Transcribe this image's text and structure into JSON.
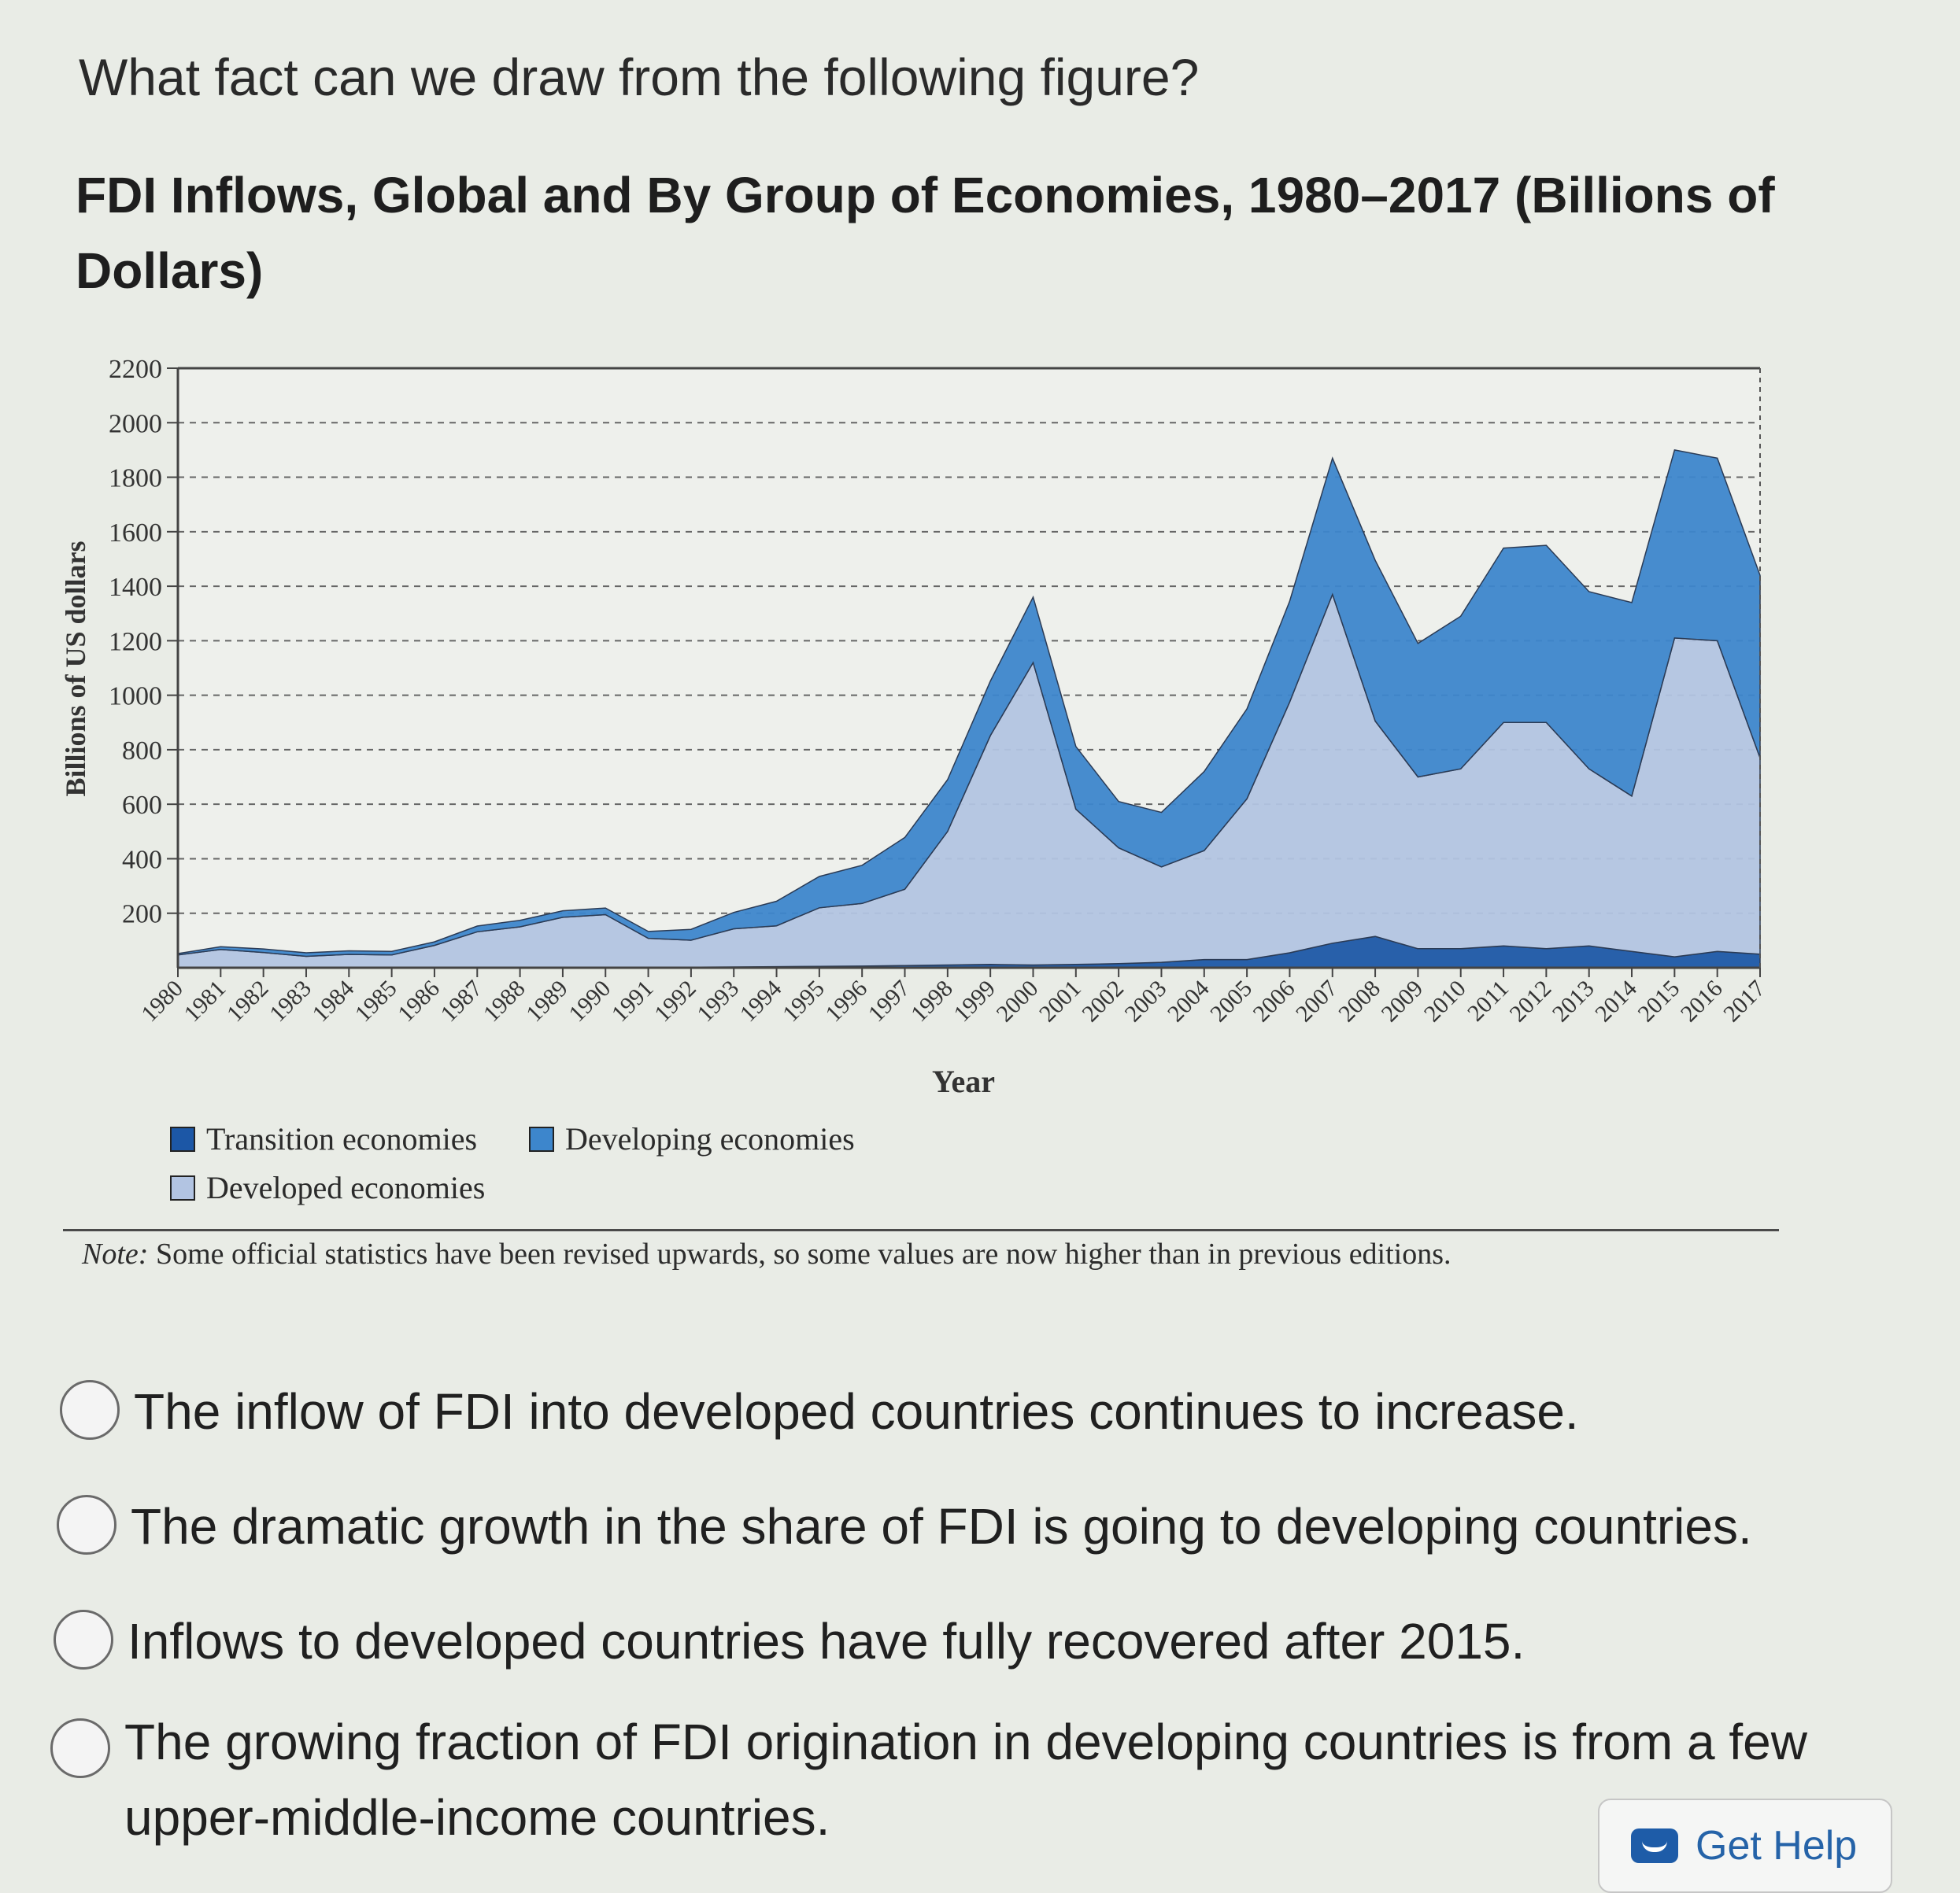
{
  "question": "What fact can we draw from the following figure?",
  "figure": {
    "title": "FDI Inflows, Global and By Group of Economies, 1980–2017 (Billions of Dollars)",
    "note_label": "Note:",
    "note_text": " Some official statistics have been revised upwards, so some values are now higher than in previous editions."
  },
  "chart_data": {
    "type": "area",
    "stacked": true,
    "xlabel": "Year",
    "ylabel": "Billions of US dollars",
    "ylim": [
      0,
      2200
    ],
    "yticks": [
      200,
      400,
      600,
      800,
      1000,
      1200,
      1400,
      1600,
      1800,
      2000,
      2200
    ],
    "grid": "dashed horizontal",
    "legend_position": "below",
    "x": [
      1980,
      1981,
      1982,
      1983,
      1984,
      1985,
      1986,
      1987,
      1988,
      1989,
      1990,
      1991,
      1992,
      1993,
      1994,
      1995,
      1996,
      1997,
      1998,
      1999,
      2000,
      2001,
      2002,
      2003,
      2004,
      2005,
      2006,
      2007,
      2008,
      2009,
      2010,
      2011,
      2012,
      2013,
      2014,
      2015,
      2016,
      2017
    ],
    "series": [
      {
        "name": "Transition economies",
        "color": "#1c57a6",
        "values": [
          0,
          0,
          0,
          0,
          0,
          0,
          0,
          0,
          0,
          0,
          0,
          0,
          2,
          3,
          4,
          5,
          6,
          8,
          10,
          12,
          10,
          12,
          15,
          20,
          30,
          30,
          55,
          90,
          115,
          70,
          70,
          80,
          70,
          80,
          60,
          40,
          60,
          50
        ]
      },
      {
        "name": "Developed economies",
        "color": "#b2c4e2",
        "values": [
          47,
          67,
          56,
          42,
          49,
          47,
          82,
          132,
          150,
          185,
          195,
          108,
          99,
          140,
          150,
          215,
          230,
          280,
          490,
          840,
          1110,
          570,
          425,
          350,
          400,
          590,
          920,
          1280,
          790,
          630,
          660,
          820,
          830,
          650,
          570,
          1170,
          1140,
          720
        ]
      },
      {
        "name": "Developing economies",
        "color": "#3d86cc",
        "values": [
          5,
          10,
          13,
          13,
          13,
          13,
          13,
          21,
          24,
          24,
          24,
          25,
          40,
          60,
          90,
          115,
          140,
          190,
          190,
          200,
          240,
          230,
          170,
          200,
          290,
          330,
          370,
          500,
          590,
          490,
          560,
          640,
          650,
          650,
          710,
          690,
          670,
          670
        ]
      }
    ]
  },
  "options": [
    "The inflow of FDI into developed countries continues to increase.",
    "The dramatic growth in the share of FDI is going to developing countries.",
    "Inflows to developed countries have fully recovered after 2015.",
    "The growing fraction of FDI origination in developing countries is from a few upper-middle-income countries."
  ],
  "help_button": "Get Help"
}
